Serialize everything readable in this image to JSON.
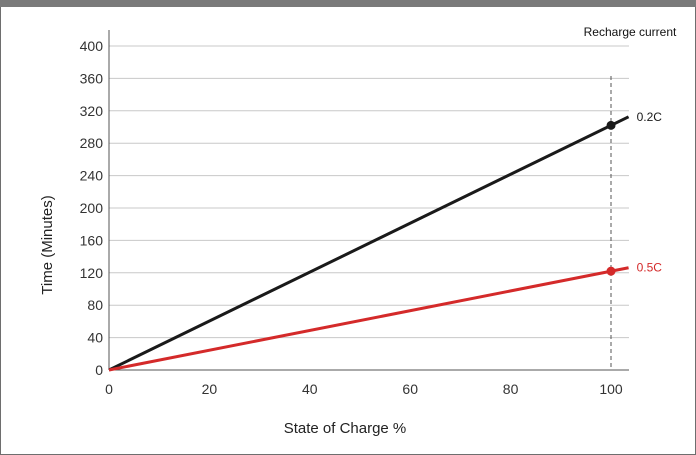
{
  "chart_data": {
    "type": "line",
    "xlabel": "State of Charge %",
    "ylabel": "Time (Minutes)",
    "xlim": [
      0,
      104
    ],
    "ylim": [
      0,
      410
    ],
    "x_ticks": [
      0,
      20,
      40,
      60,
      80,
      100
    ],
    "y_ticks": [
      0,
      40,
      80,
      120,
      160,
      200,
      240,
      280,
      320,
      360,
      400
    ],
    "grid": "horizontal",
    "legend_title": "Recharge current",
    "legend_position": "top-right",
    "marker_x": 100,
    "series": [
      {
        "name": "0.2C",
        "x": [
          0,
          100
        ],
        "y": [
          0,
          302
        ],
        "color": "#1a1a1a",
        "marker_at": 100
      },
      {
        "name": "0.5C",
        "x": [
          0,
          100
        ],
        "y": [
          0,
          122
        ],
        "color": "#d42a2a",
        "marker_at": 100
      }
    ]
  }
}
